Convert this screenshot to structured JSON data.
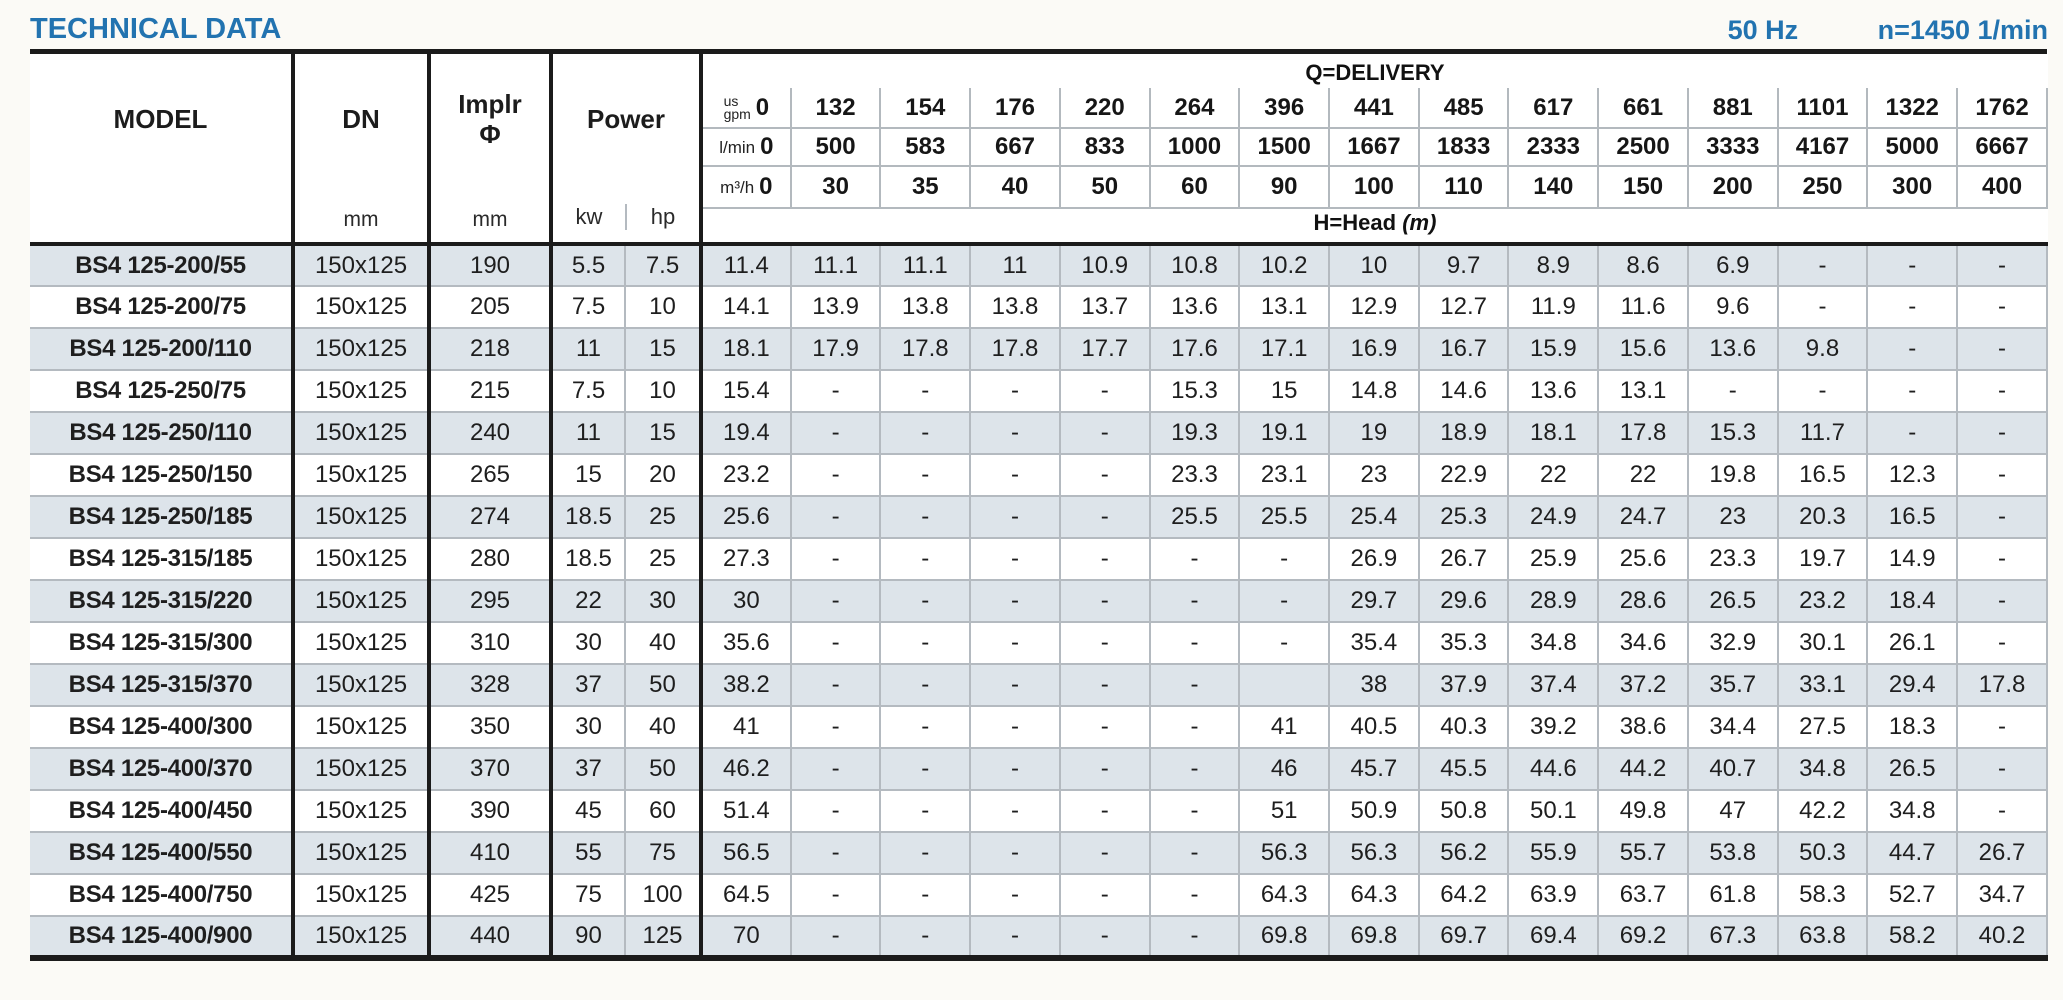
{
  "page": {
    "title": "TECHNICAL DATA",
    "frequency": "50 Hz",
    "speed": "n=1450 1/min"
  },
  "colors": {
    "accent_blue": "#2273b0",
    "row_shade": "#dde4ea",
    "border_dark": "#1b1b1b",
    "border_light": "#b4bac0"
  },
  "table": {
    "headers": {
      "model": "MODEL",
      "dn": "DN",
      "dn_unit": "mm",
      "impeller_line1": "Implr",
      "impeller_line2": "Φ",
      "impeller_unit": "mm",
      "power": "Power",
      "power_kw": "kw",
      "power_hp": "hp",
      "delivery": "Q=DELIVERY",
      "head": "H=Head",
      "head_unit": "(m)",
      "unit_usgpm_line1": "us",
      "unit_usgpm_line2": "gpm",
      "unit_lmin": "l/min",
      "unit_m3h": "m³/h"
    },
    "flow_columns": {
      "us_gpm": [
        "0",
        "132",
        "154",
        "176",
        "220",
        "264",
        "396",
        "441",
        "485",
        "617",
        "661",
        "881",
        "1101",
        "1322",
        "1762"
      ],
      "l_min": [
        "0",
        "500",
        "583",
        "667",
        "833",
        "1000",
        "1500",
        "1667",
        "1833",
        "2333",
        "2500",
        "3333",
        "4167",
        "5000",
        "6667"
      ],
      "m3_h": [
        "0",
        "30",
        "35",
        "40",
        "50",
        "60",
        "90",
        "100",
        "110",
        "140",
        "150",
        "200",
        "250",
        "300",
        "400"
      ]
    },
    "rows": [
      {
        "model": "BS4 125-200/55",
        "dn": "150x125",
        "impeller": "190",
        "kw": "5.5",
        "hp": "7.5",
        "head": [
          "11.4",
          "11.1",
          "11.1",
          "11",
          "10.9",
          "10.8",
          "10.2",
          "10",
          "9.7",
          "8.9",
          "8.6",
          "6.9",
          "-",
          "-",
          "-"
        ]
      },
      {
        "model": "BS4 125-200/75",
        "dn": "150x125",
        "impeller": "205",
        "kw": "7.5",
        "hp": "10",
        "head": [
          "14.1",
          "13.9",
          "13.8",
          "13.8",
          "13.7",
          "13.6",
          "13.1",
          "12.9",
          "12.7",
          "11.9",
          "11.6",
          "9.6",
          "-",
          "-",
          "-"
        ]
      },
      {
        "model": "BS4 125-200/110",
        "dn": "150x125",
        "impeller": "218",
        "kw": "11",
        "hp": "15",
        "head": [
          "18.1",
          "17.9",
          "17.8",
          "17.8",
          "17.7",
          "17.6",
          "17.1",
          "16.9",
          "16.7",
          "15.9",
          "15.6",
          "13.6",
          "9.8",
          "-",
          "-"
        ]
      },
      {
        "model": "BS4 125-250/75",
        "dn": "150x125",
        "impeller": "215",
        "kw": "7.5",
        "hp": "10",
        "head": [
          "15.4",
          "-",
          "-",
          "-",
          "-",
          "15.3",
          "15",
          "14.8",
          "14.6",
          "13.6",
          "13.1",
          "-",
          "-",
          "-",
          "-"
        ]
      },
      {
        "model": "BS4 125-250/110",
        "dn": "150x125",
        "impeller": "240",
        "kw": "11",
        "hp": "15",
        "head": [
          "19.4",
          "-",
          "-",
          "-",
          "-",
          "19.3",
          "19.1",
          "19",
          "18.9",
          "18.1",
          "17.8",
          "15.3",
          "11.7",
          "-",
          "-"
        ]
      },
      {
        "model": "BS4 125-250/150",
        "dn": "150x125",
        "impeller": "265",
        "kw": "15",
        "hp": "20",
        "head": [
          "23.2",
          "-",
          "-",
          "-",
          "-",
          "23.3",
          "23.1",
          "23",
          "22.9",
          "22",
          "22",
          "19.8",
          "16.5",
          "12.3",
          "-"
        ]
      },
      {
        "model": "BS4 125-250/185",
        "dn": "150x125",
        "impeller": "274",
        "kw": "18.5",
        "hp": "25",
        "head": [
          "25.6",
          "-",
          "-",
          "-",
          "-",
          "25.5",
          "25.5",
          "25.4",
          "25.3",
          "24.9",
          "24.7",
          "23",
          "20.3",
          "16.5",
          "-"
        ]
      },
      {
        "model": "BS4 125-315/185",
        "dn": "150x125",
        "impeller": "280",
        "kw": "18.5",
        "hp": "25",
        "head": [
          "27.3",
          "-",
          "-",
          "-",
          "-",
          "-",
          "-",
          "26.9",
          "26.7",
          "25.9",
          "25.6",
          "23.3",
          "19.7",
          "14.9",
          "-"
        ]
      },
      {
        "model": "BS4 125-315/220",
        "dn": "150x125",
        "impeller": "295",
        "kw": "22",
        "hp": "30",
        "head": [
          "30",
          "-",
          "-",
          "-",
          "-",
          "-",
          "-",
          "29.7",
          "29.6",
          "28.9",
          "28.6",
          "26.5",
          "23.2",
          "18.4",
          "-"
        ]
      },
      {
        "model": "BS4 125-315/300",
        "dn": "150x125",
        "impeller": "310",
        "kw": "30",
        "hp": "40",
        "head": [
          "35.6",
          "-",
          "-",
          "-",
          "-",
          "-",
          "-",
          "35.4",
          "35.3",
          "34.8",
          "34.6",
          "32.9",
          "30.1",
          "26.1",
          "-"
        ]
      },
      {
        "model": "BS4 125-315/370",
        "dn": "150x125",
        "impeller": "328",
        "kw": "37",
        "hp": "50",
        "head": [
          "38.2",
          "-",
          "-",
          "-",
          "-",
          "-",
          "",
          "38",
          "37.9",
          "37.4",
          "37.2",
          "35.7",
          "33.1",
          "29.4",
          "17.8"
        ]
      },
      {
        "model": "BS4 125-400/300",
        "dn": "150x125",
        "impeller": "350",
        "kw": "30",
        "hp": "40",
        "head": [
          "41",
          "-",
          "-",
          "-",
          "-",
          "-",
          "41",
          "40.5",
          "40.3",
          "39.2",
          "38.6",
          "34.4",
          "27.5",
          "18.3",
          "-"
        ]
      },
      {
        "model": "BS4 125-400/370",
        "dn": "150x125",
        "impeller": "370",
        "kw": "37",
        "hp": "50",
        "head": [
          "46.2",
          "-",
          "-",
          "-",
          "-",
          "-",
          "46",
          "45.7",
          "45.5",
          "44.6",
          "44.2",
          "40.7",
          "34.8",
          "26.5",
          "-"
        ]
      },
      {
        "model": "BS4 125-400/450",
        "dn": "150x125",
        "impeller": "390",
        "kw": "45",
        "hp": "60",
        "head": [
          "51.4",
          "-",
          "-",
          "-",
          "-",
          "-",
          "51",
          "50.9",
          "50.8",
          "50.1",
          "49.8",
          "47",
          "42.2",
          "34.8",
          "-"
        ]
      },
      {
        "model": "BS4 125-400/550",
        "dn": "150x125",
        "impeller": "410",
        "kw": "55",
        "hp": "75",
        "head": [
          "56.5",
          "-",
          "-",
          "-",
          "-",
          "-",
          "56.3",
          "56.3",
          "56.2",
          "55.9",
          "55.7",
          "53.8",
          "50.3",
          "44.7",
          "26.7"
        ]
      },
      {
        "model": "BS4 125-400/750",
        "dn": "150x125",
        "impeller": "425",
        "kw": "75",
        "hp": "100",
        "head": [
          "64.5",
          "-",
          "-",
          "-",
          "-",
          "-",
          "64.3",
          "64.3",
          "64.2",
          "63.9",
          "63.7",
          "61.8",
          "58.3",
          "52.7",
          "34.7"
        ]
      },
      {
        "model": "BS4 125-400/900",
        "dn": "150x125",
        "impeller": "440",
        "kw": "90",
        "hp": "125",
        "head": [
          "70",
          "-",
          "-",
          "-",
          "-",
          "-",
          "69.8",
          "69.8",
          "69.7",
          "69.4",
          "69.2",
          "67.3",
          "63.8",
          "58.2",
          "40.2"
        ]
      }
    ]
  }
}
